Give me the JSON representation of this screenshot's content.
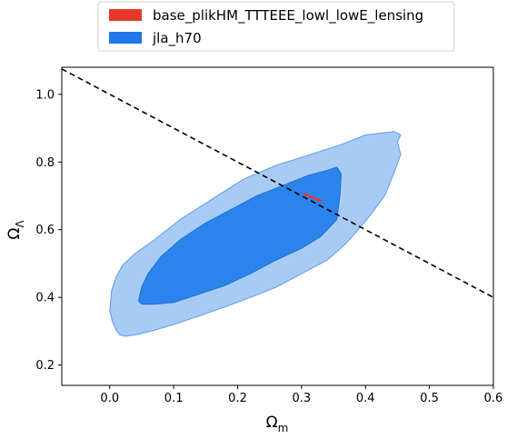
{
  "chart_data": {
    "type": "contour",
    "xlabel_main": "Ω",
    "xlabel_sub": "m",
    "ylabel_main": "Ω",
    "ylabel_sub": "Λ",
    "xlim": [
      -0.075,
      0.6
    ],
    "ylim": [
      0.14,
      1.08
    ],
    "x_ticks": [
      0.0,
      0.1,
      0.2,
      0.3,
      0.4,
      0.5,
      0.6
    ],
    "x_tick_labels": [
      "0.0",
      "0.1",
      "0.2",
      "0.3",
      "0.4",
      "0.5",
      "0.6"
    ],
    "y_ticks": [
      0.2,
      0.4,
      0.6,
      0.8,
      1.0
    ],
    "y_tick_labels": [
      "0.2",
      "0.4",
      "0.6",
      "0.8",
      "1.0"
    ],
    "grid": false,
    "legend_position": "top-center, above plot",
    "legend": [
      {
        "label": "base_plikHM_TTTEEE_lowl_lowE_lensing",
        "color": "#e8382c"
      },
      {
        "label": "jla_h70",
        "color": "#1f77e8"
      }
    ],
    "series": [
      {
        "name": "jla_h70",
        "level": "95%",
        "color": "#a8cbf5",
        "edge_color": "#5a9ae6",
        "points": [
          [
            0.0,
            0.36
          ],
          [
            0.004,
            0.33
          ],
          [
            0.01,
            0.303
          ],
          [
            0.016,
            0.289
          ],
          [
            0.025,
            0.285
          ],
          [
            0.045,
            0.291
          ],
          [
            0.07,
            0.303
          ],
          [
            0.1,
            0.32
          ],
          [
            0.14,
            0.345
          ],
          [
            0.18,
            0.372
          ],
          [
            0.22,
            0.4
          ],
          [
            0.26,
            0.43
          ],
          [
            0.3,
            0.47
          ],
          [
            0.34,
            0.51
          ],
          [
            0.37,
            0.56
          ],
          [
            0.4,
            0.625
          ],
          [
            0.43,
            0.7
          ],
          [
            0.445,
            0.77
          ],
          [
            0.455,
            0.822
          ],
          [
            0.45,
            0.86
          ],
          [
            0.455,
            0.88
          ],
          [
            0.445,
            0.89
          ],
          [
            0.4,
            0.88
          ],
          [
            0.36,
            0.85
          ],
          [
            0.31,
            0.82
          ],
          [
            0.26,
            0.79
          ],
          [
            0.21,
            0.75
          ],
          [
            0.16,
            0.69
          ],
          [
            0.11,
            0.63
          ],
          [
            0.07,
            0.57
          ],
          [
            0.04,
            0.53
          ],
          [
            0.02,
            0.495
          ],
          [
            0.01,
            0.46
          ],
          [
            0.003,
            0.42
          ]
        ]
      },
      {
        "name": "jla_h70",
        "level": "68%",
        "color": "#2a84ec",
        "edge_color": "#1f6ed0",
        "points": [
          [
            0.045,
            0.39
          ],
          [
            0.05,
            0.38
          ],
          [
            0.07,
            0.38
          ],
          [
            0.1,
            0.385
          ],
          [
            0.14,
            0.41
          ],
          [
            0.18,
            0.435
          ],
          [
            0.22,
            0.47
          ],
          [
            0.26,
            0.51
          ],
          [
            0.3,
            0.545
          ],
          [
            0.33,
            0.58
          ],
          [
            0.355,
            0.63
          ],
          [
            0.36,
            0.7
          ],
          [
            0.362,
            0.765
          ],
          [
            0.355,
            0.785
          ],
          [
            0.34,
            0.775
          ],
          [
            0.31,
            0.76
          ],
          [
            0.27,
            0.73
          ],
          [
            0.23,
            0.7
          ],
          [
            0.19,
            0.66
          ],
          [
            0.15,
            0.62
          ],
          [
            0.11,
            0.57
          ],
          [
            0.08,
            0.52
          ],
          [
            0.06,
            0.47
          ],
          [
            0.05,
            0.43
          ]
        ]
      },
      {
        "name": "base_plikHM_TTTEEE_lowl_lowE_lensing",
        "level": "68%",
        "color": "#e8382c",
        "points": [
          [
            0.305,
            0.705
          ],
          [
            0.33,
            0.685
          ]
        ]
      }
    ],
    "reference_line": {
      "style": "dashed",
      "color": "#000000",
      "points": [
        [
          -0.075,
          1.075
        ],
        [
          0.6,
          0.4
        ]
      ]
    }
  }
}
